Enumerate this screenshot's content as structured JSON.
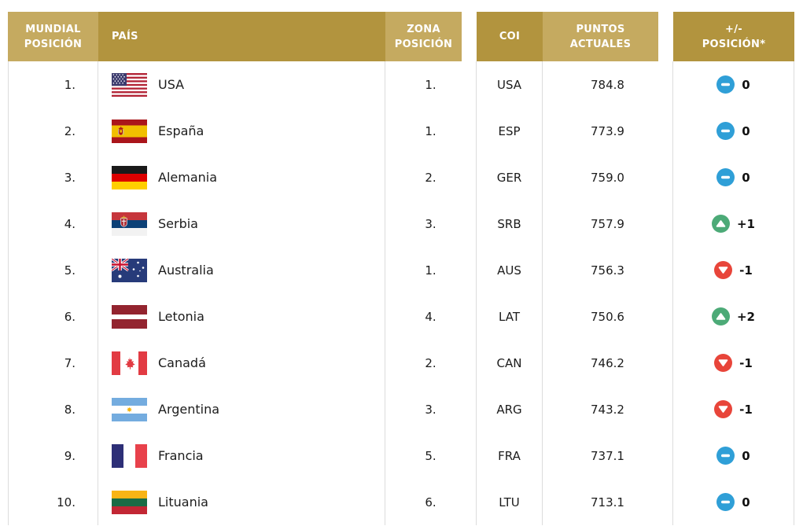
{
  "colors": {
    "header_light": "#c5aa60",
    "header_dark": "#b2943e",
    "header_text": "#ffffff",
    "body_text": "#1c1c1c",
    "border": "#dcdcdc",
    "badge_same": "#2f9fd7",
    "badge_up": "#4caa77",
    "badge_down": "#e8453a"
  },
  "icons": {
    "same": "minus-circle-icon",
    "up": "arrow-up-circle-icon",
    "down": "arrow-down-circle-icon"
  },
  "table": {
    "headers": [
      {
        "id": "world_rank",
        "line1": "MUNDIAL",
        "line2": "POSICIÓN"
      },
      {
        "id": "country",
        "line1": "PAÍS",
        "line2": ""
      },
      {
        "id": "zone_rank",
        "line1": "ZONA",
        "line2": "POSICIÓN"
      },
      {
        "id": "coi",
        "line1": "COI",
        "line2": ""
      },
      {
        "id": "points",
        "line1": "PUNTOS",
        "line2": "ACTUALES"
      },
      {
        "id": "change",
        "line1": "+/-",
        "line2": "POSICIÓN*"
      }
    ],
    "rows": [
      {
        "world_rank": "1.",
        "flag": "usa",
        "country": "USA",
        "zone_rank": "1.",
        "coi": "USA",
        "points": "784.8",
        "change": "0",
        "direction": "same"
      },
      {
        "world_rank": "2.",
        "flag": "esp",
        "country": "España",
        "zone_rank": "1.",
        "coi": "ESP",
        "points": "773.9",
        "change": "0",
        "direction": "same"
      },
      {
        "world_rank": "3.",
        "flag": "ger",
        "country": "Alemania",
        "zone_rank": "2.",
        "coi": "GER",
        "points": "759.0",
        "change": "0",
        "direction": "same"
      },
      {
        "world_rank": "4.",
        "flag": "srb",
        "country": "Serbia",
        "zone_rank": "3.",
        "coi": "SRB",
        "points": "757.9",
        "change": "+1",
        "direction": "up"
      },
      {
        "world_rank": "5.",
        "flag": "aus",
        "country": "Australia",
        "zone_rank": "1.",
        "coi": "AUS",
        "points": "756.3",
        "change": "-1",
        "direction": "down"
      },
      {
        "world_rank": "6.",
        "flag": "lat",
        "country": "Letonia",
        "zone_rank": "4.",
        "coi": "LAT",
        "points": "750.6",
        "change": "+2",
        "direction": "up"
      },
      {
        "world_rank": "7.",
        "flag": "can",
        "country": "Canadá",
        "zone_rank": "2.",
        "coi": "CAN",
        "points": "746.2",
        "change": "-1",
        "direction": "down"
      },
      {
        "world_rank": "8.",
        "flag": "arg",
        "country": "Argentina",
        "zone_rank": "3.",
        "coi": "ARG",
        "points": "743.2",
        "change": "-1",
        "direction": "down"
      },
      {
        "world_rank": "9.",
        "flag": "fra",
        "country": "Francia",
        "zone_rank": "5.",
        "coi": "FRA",
        "points": "737.1",
        "change": "0",
        "direction": "same"
      },
      {
        "world_rank": "10.",
        "flag": "ltu",
        "country": "Lituania",
        "zone_rank": "6.",
        "coi": "LTU",
        "points": "713.1",
        "change": "0",
        "direction": "same"
      }
    ]
  }
}
